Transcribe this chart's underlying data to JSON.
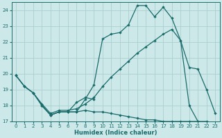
{
  "xlabel": "Humidex (Indice chaleur)",
  "bg_color": "#cce8e8",
  "grid_color": "#aacfcf",
  "line_color": "#1a6b6b",
  "xlim": [
    -0.5,
    23.5
  ],
  "ylim": [
    17.0,
    24.5
  ],
  "yticks": [
    17,
    18,
    19,
    20,
    21,
    22,
    23,
    24
  ],
  "xticks": [
    0,
    1,
    2,
    3,
    4,
    5,
    6,
    7,
    8,
    9,
    10,
    11,
    12,
    13,
    14,
    15,
    16,
    17,
    18,
    19,
    20,
    21,
    22,
    23
  ],
  "lines": [
    {
      "x": [
        0,
        1,
        2,
        3,
        4,
        5,
        6,
        7,
        8,
        9,
        10,
        11,
        12,
        13,
        14,
        15,
        16,
        17,
        18,
        19,
        20,
        21,
        22,
        23
      ],
      "y": [
        19.9,
        19.2,
        18.8,
        18.0,
        17.4,
        17.6,
        17.6,
        17.6,
        18.4,
        19.3,
        22.2,
        22.5,
        22.6,
        23.1,
        24.3,
        24.3,
        23.6,
        24.2,
        23.5,
        22.1,
        18.0,
        17.0,
        17.0,
        16.9
      ]
    },
    {
      "x": [
        0,
        1,
        2,
        3,
        4,
        5,
        6,
        7,
        8,
        9,
        10,
        11,
        12,
        13,
        14,
        15,
        16,
        17,
        18,
        19,
        20,
        21,
        22,
        23
      ],
      "y": [
        19.9,
        19.2,
        18.8,
        18.1,
        17.5,
        17.7,
        17.7,
        17.8,
        18.1,
        18.5,
        19.2,
        19.8,
        20.3,
        20.8,
        21.3,
        21.7,
        22.1,
        22.5,
        22.8,
        22.1,
        20.4,
        20.3,
        19.0,
        17.5
      ]
    },
    {
      "x": [
        0,
        1,
        2,
        3,
        4,
        5,
        6,
        7,
        8,
        9,
        10,
        11,
        12,
        13,
        14,
        15,
        16,
        17,
        18,
        19,
        20,
        21,
        22,
        23
      ],
      "y": [
        19.9,
        19.2,
        18.8,
        18.0,
        17.4,
        17.6,
        17.6,
        17.6,
        17.7,
        17.6,
        17.6,
        17.5,
        17.4,
        17.3,
        17.2,
        17.1,
        17.1,
        17.0,
        17.0,
        17.0,
        17.0,
        17.0,
        16.9,
        16.8
      ]
    },
    {
      "x": [
        3,
        4,
        5,
        6,
        7,
        8,
        9
      ],
      "y": [
        18.0,
        17.4,
        17.6,
        17.6,
        18.2,
        18.5,
        18.4
      ]
    }
  ]
}
